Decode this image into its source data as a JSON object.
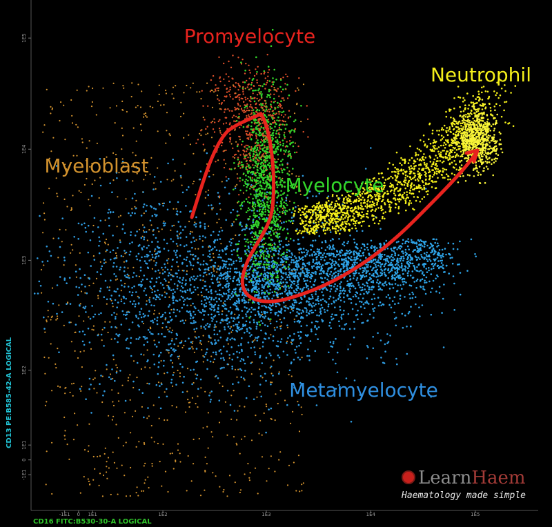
{
  "chart_data": {
    "type": "scatter",
    "xlabel": "CD16 FITC:B530-30-A LOGICAL",
    "ylabel": "CD13 PE:B585-42-A LOGICAL",
    "xlim": [
      -40,
      400000
    ],
    "ylim": [
      -40,
      220000
    ],
    "xticks": [
      {
        "value": -10,
        "label": "-1E1"
      },
      0,
      {
        "value": 10,
        "label": "1E1"
      },
      {
        "value": 100,
        "label": "1E2"
      },
      {
        "value": 1000,
        "label": "1E3"
      },
      {
        "value": 10000,
        "label": "1E4"
      },
      {
        "value": 100000,
        "label": "1E5"
      }
    ],
    "yticks": [
      {
        "value": -10,
        "label": "-1E1"
      },
      0,
      {
        "value": 10,
        "label": "1E1"
      },
      {
        "value": 100,
        "label": "1E2"
      },
      {
        "value": 1000,
        "label": "1E3"
      },
      {
        "value": 10000,
        "label": "1E4"
      },
      {
        "value": 100000,
        "label": "1E5"
      }
    ],
    "annotations": [
      {
        "text": "Promyelocyte",
        "color": "#e8231e"
      },
      {
        "text": "Neutrophil",
        "color": "#f4ef1a"
      },
      {
        "text": "Myeloblast",
        "color": "#d2922e"
      },
      {
        "text": "Myelocyte",
        "color": "#33d62a"
      },
      {
        "text": "Metamyelocyte",
        "color": "#2f8fe0"
      }
    ],
    "branding": {
      "name_first": "Learn",
      "name_second": "Haem",
      "tagline": "Haematology made simple"
    }
  }
}
